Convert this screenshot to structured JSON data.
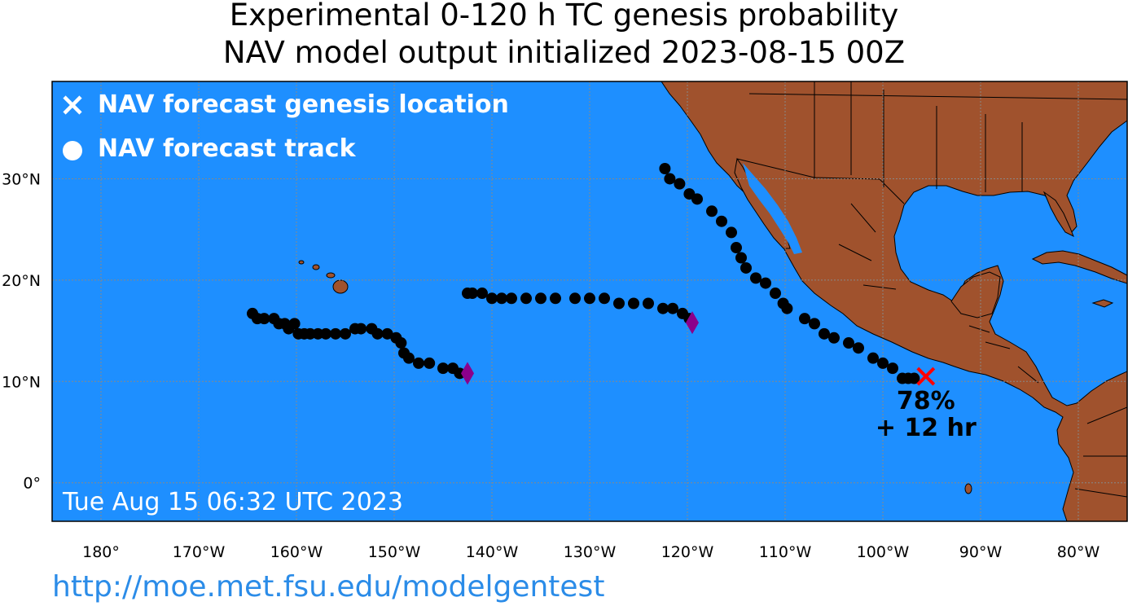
{
  "title": {
    "line1": "Experimental 0-120 h TC genesis probability",
    "line2": "NAV model output initialized 2023-08-15 00Z"
  },
  "legend": {
    "genesis_label": "NAV forecast genesis location",
    "track_label": "NAV forecast track"
  },
  "timestamp": "Tue Aug 15 06:32 UTC 2023",
  "url": "http://moe.met.fsu.edu/modelgentest",
  "colors": {
    "ocean": "#1e8fff",
    "land": "#a0522d",
    "track": "#000000",
    "genesis_marker": "#ff0000",
    "end_marker": "#8b008b",
    "url": "#2b8ce8"
  },
  "map": {
    "lon_range": [
      -185,
      -75
    ],
    "lat_range": [
      -3.8,
      39.6
    ],
    "lon_ticks": [
      {
        "lon": -180,
        "label": "180°"
      },
      {
        "lon": -170,
        "label": "170°W"
      },
      {
        "lon": -160,
        "label": "160°W"
      },
      {
        "lon": -150,
        "label": "150°W"
      },
      {
        "lon": -140,
        "label": "140°W"
      },
      {
        "lon": -130,
        "label": "130°W"
      },
      {
        "lon": -120,
        "label": "120°W"
      },
      {
        "lon": -110,
        "label": "110°W"
      },
      {
        "lon": -100,
        "label": "100°W"
      },
      {
        "lon": -90,
        "label": "90°W"
      },
      {
        "lon": -80,
        "label": "80°W"
      }
    ],
    "lat_ticks": [
      {
        "lat": 30,
        "label": "30°N"
      },
      {
        "lat": 20,
        "label": "20°N"
      },
      {
        "lat": 10,
        "label": "10°N"
      },
      {
        "lat": 0,
        "label": "0°"
      }
    ]
  },
  "genesis": {
    "lon": -95.6,
    "lat": 10.5,
    "probability": "78%",
    "lead_time": "+ 12 hr"
  },
  "tracks": [
    {
      "points": [
        [
          -164.5,
          16.7
        ],
        [
          -164.0,
          16.2
        ],
        [
          -163.3,
          16.2
        ],
        [
          -162.3,
          16.2
        ],
        [
          -161.8,
          15.7
        ],
        [
          -161.2,
          15.7
        ],
        [
          -160.8,
          15.2
        ],
        [
          -160.2,
          15.7
        ],
        [
          -159.8,
          14.7
        ],
        [
          -159.2,
          14.7
        ],
        [
          -158.6,
          14.7
        ],
        [
          -157.8,
          14.7
        ],
        [
          -157.0,
          14.7
        ],
        [
          -156.0,
          14.7
        ],
        [
          -155.0,
          14.7
        ],
        [
          -154.0,
          15.2
        ],
        [
          -153.4,
          15.2
        ],
        [
          -152.3,
          15.2
        ],
        [
          -151.7,
          14.7
        ],
        [
          -150.7,
          14.7
        ],
        [
          -149.8,
          14.3
        ],
        [
          -149.3,
          13.8
        ],
        [
          -149.0,
          12.8
        ],
        [
          -148.5,
          12.3
        ],
        [
          -147.5,
          11.8
        ],
        [
          -146.4,
          11.8
        ],
        [
          -145.0,
          11.3
        ],
        [
          -144.0,
          11.3
        ],
        [
          -143.3,
          10.8
        ]
      ],
      "end": [
        -142.5,
        10.8
      ]
    },
    {
      "points": [
        [
          -142.5,
          18.7
        ],
        [
          -142.0,
          18.7
        ],
        [
          -141.0,
          18.7
        ],
        [
          -140.0,
          18.2
        ],
        [
          -139.0,
          18.2
        ],
        [
          -138.0,
          18.2
        ],
        [
          -136.5,
          18.2
        ],
        [
          -135.0,
          18.2
        ],
        [
          -133.5,
          18.2
        ],
        [
          -131.5,
          18.2
        ],
        [
          -130.0,
          18.2
        ],
        [
          -128.5,
          18.2
        ],
        [
          -127.0,
          17.7
        ],
        [
          -125.5,
          17.7
        ],
        [
          -124.0,
          17.7
        ],
        [
          -122.5,
          17.2
        ],
        [
          -121.5,
          17.2
        ],
        [
          -120.5,
          16.7
        ],
        [
          -119.8,
          16.2
        ]
      ],
      "end": [
        -119.5,
        15.8
      ]
    },
    {
      "points": [
        [
          -122.3,
          31.0
        ],
        [
          -121.8,
          30.0
        ],
        [
          -120.8,
          29.5
        ],
        [
          -119.8,
          28.5
        ],
        [
          -119.0,
          28.0
        ],
        [
          -117.5,
          26.8
        ],
        [
          -116.5,
          25.8
        ],
        [
          -115.5,
          24.7
        ],
        [
          -115.0,
          23.2
        ],
        [
          -114.5,
          22.2
        ],
        [
          -114.0,
          21.2
        ],
        [
          -113.0,
          20.2
        ],
        [
          -112.0,
          19.7
        ],
        [
          -111.0,
          18.7
        ],
        [
          -110.2,
          17.7
        ],
        [
          -109.8,
          17.2
        ],
        [
          -108.0,
          16.2
        ],
        [
          -107.0,
          15.7
        ],
        [
          -106.0,
          14.7
        ],
        [
          -105.0,
          14.3
        ],
        [
          -103.5,
          13.8
        ],
        [
          -102.5,
          13.3
        ],
        [
          -101.0,
          12.3
        ],
        [
          -100.0,
          11.8
        ],
        [
          -99.0,
          11.3
        ],
        [
          -98.0,
          10.3
        ],
        [
          -97.4,
          10.3
        ],
        [
          -96.8,
          10.3
        ]
      ]
    }
  ]
}
